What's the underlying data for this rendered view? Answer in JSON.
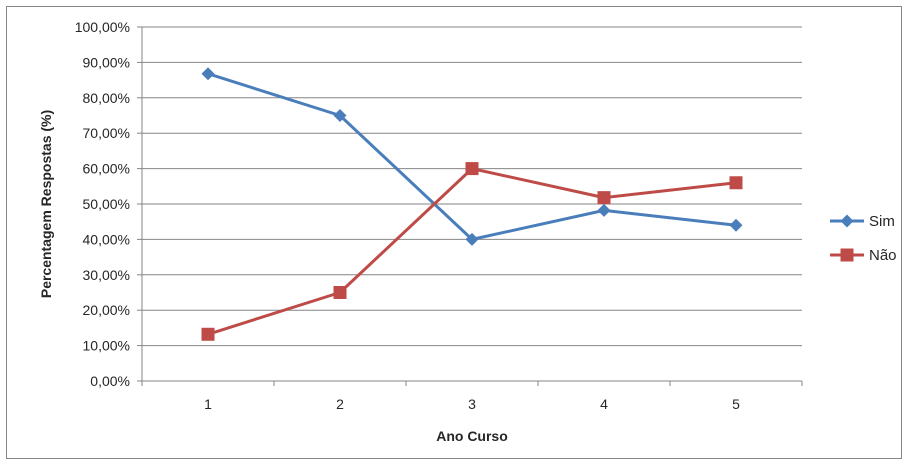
{
  "chart_data": {
    "type": "line",
    "title": "",
    "xlabel": "Ano Curso",
    "ylabel": "Percentagem Respostas (%)",
    "categories": [
      "1",
      "2",
      "3",
      "4",
      "5"
    ],
    "y_ticks": [
      "0,00%",
      "10,00%",
      "20,00%",
      "30,00%",
      "40,00%",
      "50,00%",
      "60,00%",
      "70,00%",
      "80,00%",
      "90,00%",
      "100,00%"
    ],
    "ylim": [
      0,
      100
    ],
    "grid": true,
    "legend_position": "right",
    "series": [
      {
        "name": "Sim",
        "values": [
          86.8,
          75.0,
          40.0,
          48.2,
          44.0
        ],
        "color": "#4a7ebb",
        "marker": "diamond"
      },
      {
        "name": "Não",
        "values": [
          13.2,
          25.0,
          60.0,
          51.8,
          56.0
        ],
        "color": "#be4b48",
        "marker": "square"
      }
    ]
  }
}
